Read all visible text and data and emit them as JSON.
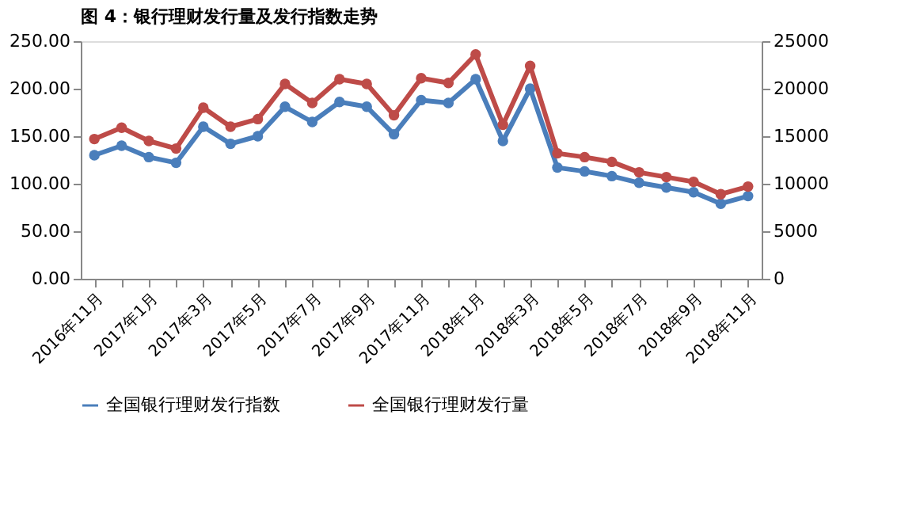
{
  "chart_data": {
    "type": "line",
    "title": "图 4：银行理财发行量及发行指数走势",
    "categories": [
      "2016年11月",
      null,
      "2017年1月",
      null,
      "2017年3月",
      null,
      "2017年5月",
      null,
      "2017年7月",
      null,
      "2017年9月",
      null,
      "2017年11月",
      null,
      "2018年1月",
      null,
      "2018年3月",
      null,
      "2018年5月",
      null,
      "2018年7月",
      null,
      "2018年9月",
      null,
      "2018年11月"
    ],
    "series": [
      {
        "name": "全国银行理财发行指数",
        "color": "#4a7ebb",
        "values": [
          130,
          140,
          128,
          122,
          160,
          142,
          150,
          181,
          165,
          186,
          181,
          152,
          188,
          185,
          210,
          145,
          200,
          117,
          113,
          108,
          101,
          96,
          91,
          79,
          87
        ]
      },
      {
        "name": "全国银行理财发行量",
        "color": "#be4b48",
        "axis": "y2",
        "values": [
          14700,
          15900,
          14500,
          13700,
          18000,
          16000,
          16800,
          20500,
          18500,
          21000,
          20500,
          17200,
          21100,
          20600,
          23600,
          16200,
          22400,
          13200,
          12800,
          12300,
          11200,
          10700,
          10200,
          8900,
          9700
        ]
      }
    ],
    "ylim": [
      0,
      250
    ],
    "yticks": [
      {
        "value": 0,
        "label": "0.00"
      },
      {
        "value": 50,
        "label": "50.00"
      },
      {
        "value": 100,
        "label": "100.00"
      },
      {
        "value": 150,
        "label": "150.00"
      },
      {
        "value": 200,
        "label": "200.00"
      },
      {
        "value": 250,
        "label": "250.00"
      }
    ],
    "y2lim": [
      0,
      25000
    ],
    "y2ticks": [
      0,
      5000,
      10000,
      15000,
      20000,
      25000
    ],
    "grid": false,
    "legend": "bottom",
    "marker": "circle",
    "line_style": "solid"
  }
}
